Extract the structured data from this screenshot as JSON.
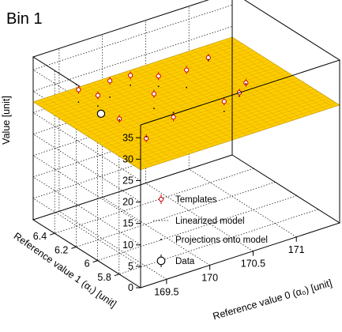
{
  "chart_data": {
    "type": "scatter",
    "title": "Bin 1",
    "xlabel": "Reference value 0 (α₀) [unit]",
    "ylabel": "Reference value 1 (α₁) [unit]",
    "zlabel": "Value [unit]",
    "xlim": [
      169.2,
      171.5
    ],
    "ylim": [
      5.6,
      6.6
    ],
    "zlim": [
      0,
      38
    ],
    "x_ticks": [
      169.5,
      170,
      170.5,
      171
    ],
    "y_ticks": [
      5.8,
      6,
      6.2,
      6.4
    ],
    "z_ticks": [
      0,
      5,
      10,
      15,
      20,
      25,
      30,
      35
    ],
    "legend_position": "bottom-right",
    "legend": [
      "Templates",
      "Linearized model",
      "Projections onto model",
      "Data"
    ],
    "model_plane": {
      "z0": 27.5,
      "dz_dx": 0.0,
      "dz_dy": 0.0,
      "color": "#ffcc00"
    },
    "templates": [
      {
        "x": 169.6,
        "y": 6.5,
        "z": 29.3
      },
      {
        "x": 169.7,
        "y": 6.4,
        "z": 28.9
      },
      {
        "x": 169.9,
        "y": 6.45,
        "z": 30.2
      },
      {
        "x": 170.2,
        "y": 6.5,
        "z": 28.7
      },
      {
        "x": 170.4,
        "y": 6.4,
        "z": 28.8
      },
      {
        "x": 170.6,
        "y": 6.3,
        "z": 30.5
      },
      {
        "x": 171.1,
        "y": 6.5,
        "z": 26.9
      },
      {
        "x": 169.7,
        "y": 6.2,
        "z": 26.6
      },
      {
        "x": 170.1,
        "y": 6.2,
        "z": 29.8
      },
      {
        "x": 170.2,
        "y": 6.1,
        "z": 25.3
      },
      {
        "x": 170.6,
        "y": 5.95,
        "z": 28.7
      },
      {
        "x": 170.9,
        "y": 6.05,
        "z": 27.2
      },
      {
        "x": 171.1,
        "y": 6.15,
        "z": 26.6
      },
      {
        "x": 169.7,
        "y": 5.95,
        "z": 26.0
      }
    ],
    "data_point": {
      "x": 169.55,
      "y": 6.25,
      "z": 28.0
    }
  }
}
